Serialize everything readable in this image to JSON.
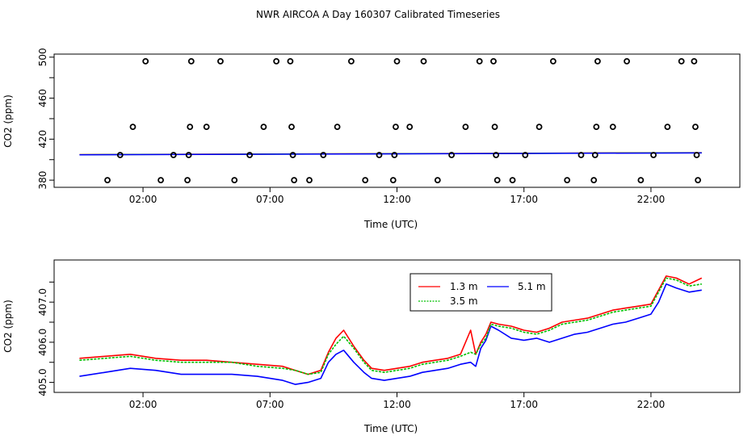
{
  "title": "NWR AIRCOA A  Day 160307  Calibrated Timeseries",
  "colors": {
    "h13": "#ff0000",
    "h35": "#00c000",
    "h51": "#0000ff",
    "markers": "#000000",
    "axes": "#000000"
  },
  "chart_data": [
    {
      "type": "scatter+line",
      "xlabel": "Time (UTC)",
      "ylabel": "CO2 (ppm)",
      "xlim": [
        -1.5,
        25.5
      ],
      "ylim": [
        373,
        503
      ],
      "xticks": [
        2,
        7,
        12,
        17,
        22
      ],
      "xtick_labels": [
        "02:00",
        "07:00",
        "12:00",
        "17:00",
        "22:00"
      ],
      "yticks": [
        380,
        420,
        460,
        500
      ],
      "ytick_labels": [
        "380",
        "420",
        "460",
        "500"
      ],
      "y_minor_ticks": [
        400,
        440,
        480
      ],
      "reference_points": [
        {
          "x": 0.6,
          "y": 380
        },
        {
          "x": 1.1,
          "y": 404.5
        },
        {
          "x": 1.6,
          "y": 432
        },
        {
          "x": 2.1,
          "y": 496
        },
        {
          "x": 2.7,
          "y": 380
        },
        {
          "x": 3.2,
          "y": 404.5
        },
        {
          "x": 3.75,
          "y": 380
        },
        {
          "x": 3.8,
          "y": 404.5
        },
        {
          "x": 3.85,
          "y": 432
        },
        {
          "x": 3.9,
          "y": 496
        },
        {
          "x": 4.5,
          "y": 432
        },
        {
          "x": 5.05,
          "y": 496
        },
        {
          "x": 5.6,
          "y": 380
        },
        {
          "x": 6.2,
          "y": 404.5
        },
        {
          "x": 6.75,
          "y": 432
        },
        {
          "x": 7.25,
          "y": 496
        },
        {
          "x": 7.8,
          "y": 496
        },
        {
          "x": 7.85,
          "y": 432
        },
        {
          "x": 7.9,
          "y": 404.5
        },
        {
          "x": 7.95,
          "y": 380
        },
        {
          "x": 8.55,
          "y": 380
        },
        {
          "x": 9.1,
          "y": 404.5
        },
        {
          "x": 9.65,
          "y": 432
        },
        {
          "x": 10.2,
          "y": 496
        },
        {
          "x": 10.75,
          "y": 380
        },
        {
          "x": 11.3,
          "y": 404.5
        },
        {
          "x": 11.85,
          "y": 380
        },
        {
          "x": 11.9,
          "y": 404.5
        },
        {
          "x": 11.95,
          "y": 432
        },
        {
          "x": 12.0,
          "y": 496
        },
        {
          "x": 12.5,
          "y": 432
        },
        {
          "x": 13.05,
          "y": 496
        },
        {
          "x": 13.6,
          "y": 380
        },
        {
          "x": 14.15,
          "y": 404.5
        },
        {
          "x": 14.7,
          "y": 432
        },
        {
          "x": 15.25,
          "y": 496
        },
        {
          "x": 15.8,
          "y": 496
        },
        {
          "x": 15.85,
          "y": 432
        },
        {
          "x": 15.9,
          "y": 404.5
        },
        {
          "x": 15.95,
          "y": 380
        },
        {
          "x": 16.55,
          "y": 380
        },
        {
          "x": 17.05,
          "y": 404.5
        },
        {
          "x": 17.6,
          "y": 432
        },
        {
          "x": 18.15,
          "y": 496
        },
        {
          "x": 18.7,
          "y": 380
        },
        {
          "x": 19.25,
          "y": 404.5
        },
        {
          "x": 19.75,
          "y": 380
        },
        {
          "x": 19.8,
          "y": 404.5
        },
        {
          "x": 19.85,
          "y": 432
        },
        {
          "x": 19.9,
          "y": 496
        },
        {
          "x": 20.5,
          "y": 432
        },
        {
          "x": 21.05,
          "y": 496
        },
        {
          "x": 21.6,
          "y": 380
        },
        {
          "x": 22.1,
          "y": 404.5
        },
        {
          "x": 22.65,
          "y": 432
        },
        {
          "x": 23.2,
          "y": 496
        },
        {
          "x": 23.7,
          "y": 496
        },
        {
          "x": 23.75,
          "y": 432
        },
        {
          "x": 23.8,
          "y": 404.5
        },
        {
          "x": 23.85,
          "y": 380
        }
      ],
      "trend_line": {
        "x": [
          -0.5,
          24.0
        ],
        "y": [
          404.7,
          406.6
        ]
      }
    },
    {
      "type": "line",
      "xlabel": "Time (UTC)",
      "ylabel": "CO2 (ppm)",
      "xlim": [
        -1.5,
        25.5
      ],
      "ylim": [
        404.75,
        408.05
      ],
      "xticks": [
        2,
        7,
        12,
        17,
        22
      ],
      "xtick_labels": [
        "02:00",
        "07:00",
        "12:00",
        "17:00",
        "22:00"
      ],
      "yticks": [
        405.0,
        406.0,
        407.0
      ],
      "ytick_labels": [
        "405.0",
        "406.0",
        "407.0"
      ],
      "y_minor_ticks": [
        405.5,
        406.5,
        407.5
      ],
      "legend": {
        "position": "top-center",
        "entries": [
          {
            "label": "1.3 m",
            "series": 0
          },
          {
            "label": "3.5 m",
            "series": 1
          },
          {
            "label": "5.1 m",
            "series": 2
          }
        ]
      },
      "x": [
        -0.5,
        0.5,
        1.5,
        2.5,
        3.5,
        4.5,
        5.5,
        6.5,
        7.5,
        8.0,
        8.5,
        9.0,
        9.3,
        9.6,
        9.9,
        10.3,
        10.7,
        11.0,
        11.5,
        12.0,
        12.5,
        13.0,
        13.5,
        14.0,
        14.5,
        14.9,
        15.1,
        15.3,
        15.5,
        15.7,
        16.0,
        16.5,
        17.0,
        17.5,
        18.0,
        18.5,
        19.0,
        19.5,
        20.0,
        20.5,
        21.0,
        21.5,
        22.0,
        22.3,
        22.6,
        23.0,
        23.5,
        24.0
      ],
      "series": [
        {
          "name": "1.3 m",
          "values": [
            405.6,
            405.65,
            405.7,
            405.6,
            405.55,
            405.55,
            405.5,
            405.45,
            405.4,
            405.3,
            405.2,
            405.3,
            405.75,
            406.1,
            406.3,
            405.9,
            405.55,
            405.35,
            405.3,
            405.35,
            405.4,
            405.5,
            405.55,
            405.6,
            405.7,
            406.3,
            405.7,
            406.0,
            406.2,
            406.5,
            406.45,
            406.4,
            406.3,
            406.25,
            406.35,
            406.5,
            406.55,
            406.6,
            406.7,
            406.8,
            406.85,
            406.9,
            406.95,
            407.3,
            407.65,
            407.6,
            407.45,
            407.6
          ]
        },
        {
          "name": "3.5 m",
          "values": [
            405.55,
            405.6,
            405.65,
            405.55,
            405.5,
            405.5,
            405.5,
            405.4,
            405.35,
            405.3,
            405.2,
            405.25,
            405.7,
            405.95,
            406.15,
            405.85,
            405.5,
            405.3,
            405.25,
            405.3,
            405.35,
            405.45,
            405.5,
            405.55,
            405.65,
            405.75,
            405.7,
            405.95,
            406.1,
            406.45,
            406.4,
            406.35,
            406.25,
            406.2,
            406.3,
            406.45,
            406.5,
            406.55,
            406.65,
            406.75,
            406.8,
            406.85,
            406.9,
            407.25,
            407.6,
            407.55,
            407.4,
            407.45
          ]
        },
        {
          "name": "5.1 m",
          "values": [
            405.15,
            405.25,
            405.35,
            405.3,
            405.2,
            405.2,
            405.2,
            405.15,
            405.05,
            404.95,
            405.0,
            405.1,
            405.5,
            405.7,
            405.8,
            405.5,
            405.25,
            405.1,
            405.05,
            405.1,
            405.15,
            405.25,
            405.3,
            405.35,
            405.45,
            405.5,
            405.4,
            405.85,
            406.05,
            406.4,
            406.3,
            406.1,
            406.05,
            406.1,
            406.0,
            406.1,
            406.2,
            406.25,
            406.35,
            406.45,
            406.5,
            406.6,
            406.7,
            407.0,
            407.45,
            407.35,
            407.25,
            407.3
          ]
        }
      ]
    }
  ]
}
